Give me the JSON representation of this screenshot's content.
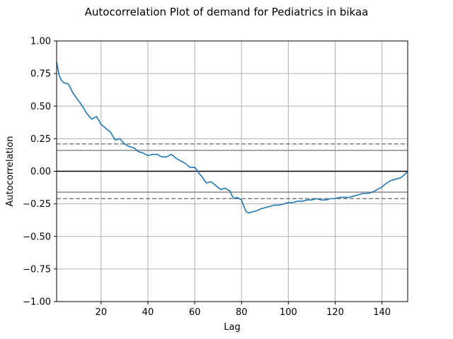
{
  "chart_data": {
    "type": "line",
    "title": "Autocorrelation Plot of demand for Pediatrics in bikaa",
    "xlabel": "Lag",
    "ylabel": "Autocorrelation",
    "xlim": [
      1,
      151
    ],
    "ylim": [
      -1.0,
      1.0
    ],
    "x_ticks": [
      20,
      40,
      60,
      80,
      100,
      120,
      140
    ],
    "x_tick_labels": [
      "20",
      "40",
      "60",
      "80",
      "100",
      "120",
      "140"
    ],
    "y_ticks": [
      -1.0,
      -0.75,
      -0.5,
      -0.25,
      0.0,
      0.25,
      0.5,
      0.75,
      1.0
    ],
    "y_tick_labels": [
      "−1.00",
      "−0.75",
      "−0.50",
      "−0.25",
      "0.00",
      "0.25",
      "0.50",
      "0.75",
      "1.00"
    ],
    "grid": true,
    "reference_lines": [
      {
        "y": 0.0,
        "style": "solid",
        "color": "#000000"
      },
      {
        "y": 0.16,
        "style": "solid",
        "color": "#808080"
      },
      {
        "y": -0.16,
        "style": "solid",
        "color": "#808080"
      },
      {
        "y": 0.21,
        "style": "dashed",
        "color": "#808080"
      },
      {
        "y": -0.21,
        "style": "dashed",
        "color": "#808080"
      }
    ],
    "series": [
      {
        "color": "#1f77b4",
        "x": [
          1,
          2,
          3,
          4,
          6,
          8,
          10,
          12,
          14,
          16,
          18,
          20,
          22,
          24,
          26,
          28,
          30,
          32,
          34,
          36,
          38,
          40,
          42,
          44,
          46,
          48,
          50,
          52,
          54,
          56,
          58,
          60,
          61,
          62,
          63,
          65,
          67,
          69,
          71,
          73,
          75,
          76,
          77,
          78,
          80,
          81,
          82,
          83,
          85,
          87,
          88,
          90,
          92,
          94,
          96,
          98,
          100,
          102,
          104,
          106,
          108,
          110,
          112,
          114,
          116,
          118,
          120,
          122,
          124,
          126,
          128,
          130,
          132,
          134,
          136,
          138,
          140,
          142,
          144,
          146,
          148,
          150,
          151
        ],
        "y": [
          0.84,
          0.74,
          0.7,
          0.68,
          0.67,
          0.6,
          0.55,
          0.5,
          0.44,
          0.4,
          0.42,
          0.36,
          0.33,
          0.3,
          0.24,
          0.25,
          0.21,
          0.19,
          0.18,
          0.15,
          0.14,
          0.12,
          0.13,
          0.13,
          0.11,
          0.11,
          0.13,
          0.1,
          0.08,
          0.06,
          0.03,
          0.03,
          0.01,
          -0.02,
          -0.04,
          -0.09,
          -0.08,
          -0.11,
          -0.14,
          -0.13,
          -0.15,
          -0.19,
          -0.21,
          -0.2,
          -0.22,
          -0.27,
          -0.31,
          -0.32,
          -0.31,
          -0.3,
          -0.29,
          -0.28,
          -0.27,
          -0.26,
          -0.26,
          -0.25,
          -0.24,
          -0.24,
          -0.23,
          -0.23,
          -0.22,
          -0.22,
          -0.21,
          -0.22,
          -0.22,
          -0.21,
          -0.21,
          -0.2,
          -0.2,
          -0.2,
          -0.19,
          -0.18,
          -0.17,
          -0.17,
          -0.16,
          -0.14,
          -0.12,
          -0.09,
          -0.07,
          -0.06,
          -0.05,
          -0.02,
          0.0
        ]
      }
    ]
  }
}
